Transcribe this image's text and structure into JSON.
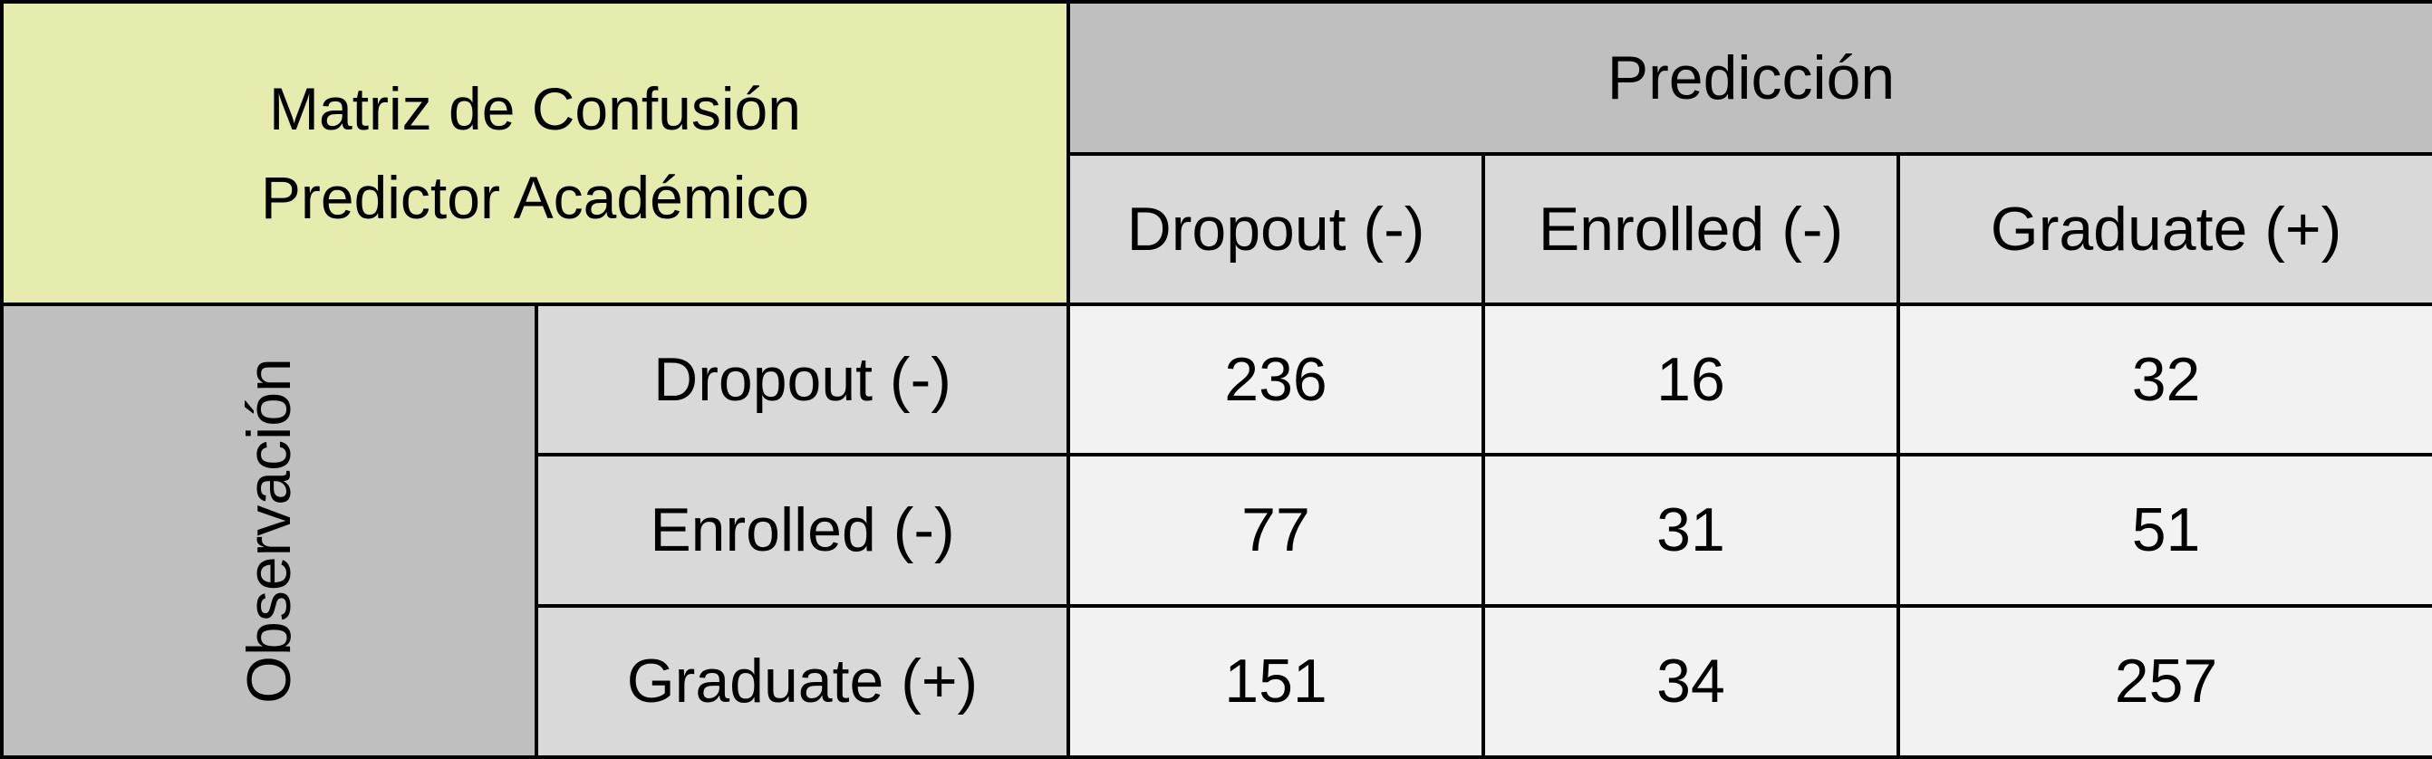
{
  "colors": {
    "title_bg": "#e5ecad",
    "header_dark_bg": "#bfbfbf",
    "header_light_bg": "#d9d9d9",
    "value_bg": "#f2f2f2",
    "border": "#000000"
  },
  "chart_data": {
    "type": "table",
    "title_lines": [
      "Matriz de Confusión",
      "Predictor Académico"
    ],
    "col_group_label": "Predicción",
    "row_group_label": "Observación",
    "columns": [
      "Dropout (-)",
      "Enrolled (-)",
      "Graduate (+)"
    ],
    "rows": [
      {
        "label": "Dropout (-)",
        "values": [
          236,
          16,
          32
        ]
      },
      {
        "label": "Enrolled (-)",
        "values": [
          77,
          31,
          51
        ]
      },
      {
        "label": "Graduate (+)",
        "values": [
          151,
          34,
          257
        ]
      }
    ]
  }
}
